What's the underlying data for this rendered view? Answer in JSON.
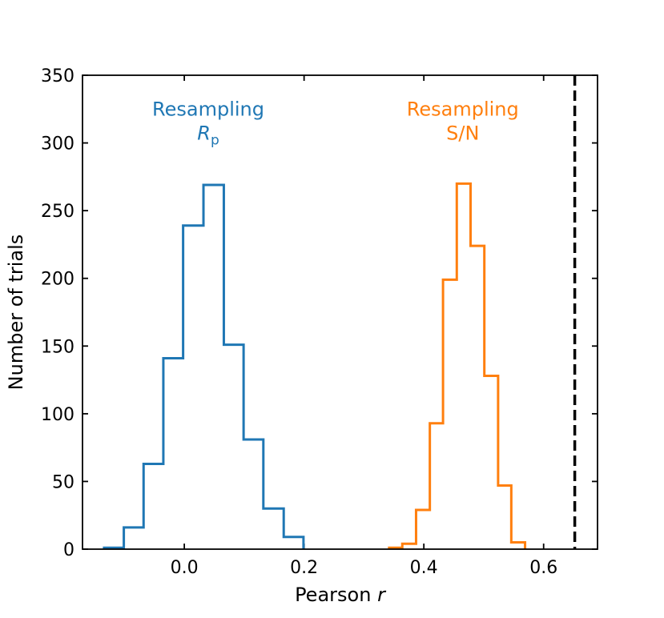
{
  "chart_data": {
    "type": "histogram",
    "xlabel": "Pearson",
    "xlabel_var": "r",
    "ylabel": "Number of trials",
    "xlim": [
      -0.17,
      0.69
    ],
    "ylim": [
      0,
      350
    ],
    "xticks": [
      0.0,
      0.2,
      0.4,
      0.6
    ],
    "xtick_labels": [
      "0.0",
      "0.2",
      "0.4",
      "0.6"
    ],
    "yticks": [
      0,
      50,
      100,
      150,
      200,
      250,
      300,
      350
    ],
    "ytick_labels": [
      "0",
      "50",
      "100",
      "150",
      "200",
      "250",
      "300",
      "350"
    ],
    "series": [
      {
        "name": "Resampling Rp",
        "color": "#1f77b4",
        "bin_edges": [
          -0.134,
          -0.101,
          -0.068,
          -0.035,
          -0.002,
          0.032,
          0.066,
          0.099,
          0.132,
          0.166,
          0.199
        ],
        "counts": [
          1,
          16,
          63,
          141,
          239,
          269,
          151,
          81,
          30,
          9
        ]
      },
      {
        "name": "Resampling S/N",
        "color": "#ff7f0e",
        "bin_edges": [
          0.342,
          0.364,
          0.387,
          0.41,
          0.432,
          0.455,
          0.478,
          0.501,
          0.524,
          0.546,
          0.569
        ],
        "counts": [
          1,
          4,
          29,
          93,
          199,
          270,
          224,
          128,
          47,
          5
        ]
      }
    ],
    "reference_line": {
      "x": 0.652,
      "style": "dashed",
      "color": "#000000"
    },
    "annotations": [
      {
        "line1": "Resampling",
        "line2_italic": "R",
        "line2_sub": "p",
        "color": "#1f77b4",
        "x": 0.04,
        "y": 320
      },
      {
        "line1": "Resampling",
        "line2": "S/N",
        "color": "#ff7f0e",
        "x": 0.465,
        "y": 320
      }
    ]
  }
}
